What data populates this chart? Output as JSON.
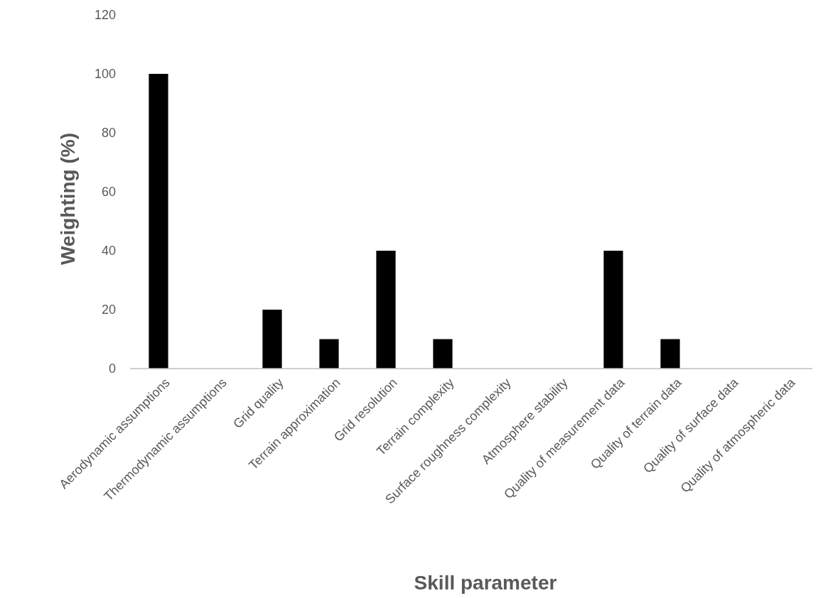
{
  "chart_data": {
    "type": "bar",
    "xlabel": "Skill parameter",
    "ylabel": "Weighting (%)",
    "categories": [
      "Aerodynamic assumptions",
      "Thermodynamic assumptions",
      "Grid quality",
      "Terrain approximation",
      "Grid resolution",
      "Terrain complexity",
      "Surface roughness complexity",
      "Atmosphere stability",
      "Quality of measurement data",
      "Quality of terrain data",
      "Quality of surface data",
      "Quality of atmospheric data"
    ],
    "values": [
      100,
      0,
      20,
      10,
      40,
      10,
      0,
      0,
      40,
      10,
      0,
      0
    ],
    "color": "#000000",
    "ylim": [
      0,
      120
    ],
    "yticks": [
      0,
      20,
      40,
      60,
      80,
      100,
      120
    ],
    "grid": false
  }
}
